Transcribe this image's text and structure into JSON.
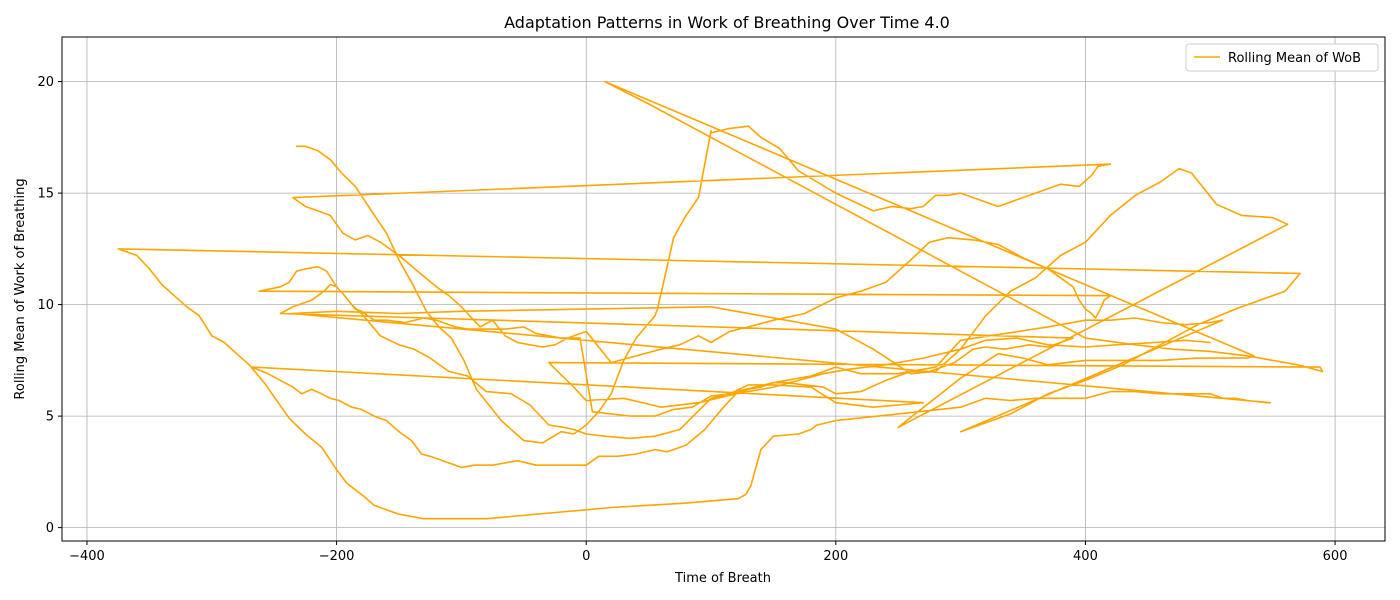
{
  "chart_data": {
    "type": "line",
    "title": "Adaptation Patterns in Work of Breathing Over Time 4.0",
    "xlabel": "Time of Breath",
    "ylabel": "Rolling Mean of Work of Breathing",
    "xlim": [
      -420,
      640
    ],
    "ylim": [
      -0.6,
      22
    ],
    "xticks": [
      -400,
      -200,
      0,
      200,
      400,
      600
    ],
    "yticks": [
      0,
      5,
      10,
      15,
      20
    ],
    "xtick_labels": [
      "−400",
      "−200",
      "0",
      "200",
      "400",
      "600"
    ],
    "ytick_labels": [
      "0",
      "5",
      "10",
      "15",
      "20"
    ],
    "grid": true,
    "legend": {
      "position": "top-right"
    },
    "series": [
      {
        "name": "Rolling Mean of WoB",
        "color": "#ffa500",
        "x": [
          -232,
          -225,
          -215,
          -205,
          -196,
          -185,
          -172,
          -160,
          -150,
          -140,
          -128,
          -118,
          -108,
          -98,
          -88,
          -78,
          -68,
          -50,
          -35,
          -20,
          -10,
          0,
          10,
          20,
          30,
          40,
          55,
          57,
          62,
          70,
          80,
          90,
          100,
          100,
          115,
          130,
          140,
          155,
          170,
          185,
          200,
          215,
          230,
          245,
          260,
          270,
          280,
          290,
          300,
          330,
          360,
          380,
          395,
          405,
          410,
          420,
          -235,
          -225,
          -215,
          -205,
          -195,
          -185,
          -175,
          -165,
          -150,
          -135,
          -120,
          -110,
          -100,
          -95,
          -85,
          -75,
          -65,
          -55,
          -45,
          -35,
          -25,
          -15,
          0,
          20,
          40,
          60,
          75,
          90,
          100,
          115,
          130,
          150,
          175,
          200,
          220,
          240,
          260,
          275,
          290,
          310,
          330,
          350,
          370,
          380,
          390,
          395,
          400,
          405,
          408,
          412,
          415,
          420,
          -262,
          -245,
          -238,
          -232,
          -225,
          -215,
          -208,
          -200,
          -195,
          -185,
          -180,
          -170,
          -160,
          -145,
          -130,
          -120,
          -105,
          -95,
          -80,
          -65,
          -50,
          -40,
          -30,
          -20,
          -5,
          5,
          20,
          35,
          55,
          70,
          85,
          100,
          115,
          130,
          150,
          180,
          200,
          230,
          250,
          270,
          -268,
          -255,
          -245,
          -235,
          -228,
          -220,
          -212,
          -205,
          -198,
          -188,
          -180,
          -170,
          -160,
          -150,
          -140,
          -132,
          -125,
          -115,
          -100,
          -90,
          -75,
          -55,
          -40,
          -25,
          -10,
          0,
          10,
          25,
          40,
          55,
          65,
          80,
          95,
          110,
          120,
          130,
          140,
          150,
          160,
          175,
          190,
          200,
          220,
          240,
          260,
          275,
          295,
          310,
          320,
          335,
          355,
          370,
          380,
          390,
          -245,
          -235,
          -220,
          -210,
          -205,
          -200,
          -195,
          -188,
          -180,
          -165,
          -150,
          -138,
          -125,
          -110,
          -95,
          -80,
          -60,
          -45,
          -30,
          -18,
          -10,
          0,
          15,
          35,
          55,
          75,
          100,
          120,
          150,
          180,
          200,
          220,
          250,
          280,
          300,
          370,
          380,
          400,
          420,
          440,
          460,
          480,
          500,
          510,
          300,
          340,
          370,
          400,
          430,
          460,
          490,
          520,
          560,
          572,
          -375,
          -360,
          -350,
          -340,
          -330,
          -320,
          -310,
          -300,
          -290,
          -280,
          -270,
          -258,
          -248,
          -238,
          -225,
          -212,
          -200,
          -192,
          -185,
          -178,
          -170,
          -160,
          -150,
          -140,
          -130,
          -120,
          -100,
          -80,
          -60,
          -40,
          -20,
          0,
          20,
          50,
          80,
          100,
          122,
          128,
          132,
          140,
          150,
          170,
          180,
          185,
          200,
          250,
          300,
          320,
          340,
          360,
          375,
          400,
          420,
          440,
          460,
          480,
          500,
          510,
          520,
          530,
          545,
          548,
          -236,
          -200,
          -150,
          -100,
          0,
          100,
          200,
          230,
          260,
          280,
          300,
          320,
          340,
          360,
          380,
          400,
          420,
          440,
          460,
          475,
          485,
          495,
          505,
          525,
          550,
          562,
          250,
          300,
          330,
          350,
          370,
          400,
          430,
          460,
          490,
          510,
          530,
          535,
          15,
          50,
          100,
          150,
          200,
          250,
          300,
          350,
          400,
          440,
          470,
          500,
          530,
          570,
          590,
          588,
          -30,
          -10,
          0,
          30,
          60,
          90,
          120,
          150,
          170,
          190,
          210,
          240,
          270,
          300,
          320,
          345,
          370,
          400,
          425,
          455,
          480,
          500
        ],
        "y": [
          17.1,
          17.1,
          16.9,
          16.5,
          15.9,
          15.3,
          14.2,
          13.2,
          12.0,
          11.0,
          9.7,
          9.0,
          8.5,
          7.5,
          6.2,
          5.5,
          4.8,
          3.9,
          3.8,
          4.3,
          4.2,
          4.6,
          5.2,
          6.0,
          7.5,
          8.5,
          9.5,
          9.8,
          11.0,
          13.0,
          14.0,
          14.8,
          17.8,
          17.7,
          17.9,
          18.0,
          17.5,
          17.0,
          16.0,
          15.5,
          15.0,
          14.6,
          14.2,
          14.4,
          14.3,
          14.4,
          14.9,
          14.9,
          15.0,
          14.4,
          15.0,
          15.4,
          15.3,
          15.8,
          16.2,
          16.3,
          14.8,
          14.4,
          14.2,
          14.0,
          13.2,
          12.9,
          13.1,
          12.8,
          12.2,
          11.5,
          10.8,
          10.4,
          9.9,
          9.6,
          9.0,
          9.3,
          8.6,
          8.3,
          8.2,
          8.1,
          8.2,
          8.5,
          8.8,
          7.4,
          7.7,
          8.0,
          8.2,
          8.6,
          8.3,
          8.8,
          9.0,
          9.3,
          9.6,
          10.3,
          10.6,
          11.0,
          12.0,
          12.8,
          13.0,
          12.9,
          12.7,
          12.1,
          11.6,
          11.2,
          10.8,
          10.2,
          9.8,
          9.6,
          9.4,
          9.8,
          10.2,
          10.4,
          10.6,
          10.8,
          11.0,
          11.5,
          11.6,
          11.7,
          11.5,
          10.8,
          10.5,
          9.8,
          9.7,
          9.3,
          9.3,
          9.2,
          9.4,
          9.3,
          9.0,
          8.9,
          8.9,
          8.9,
          9.0,
          8.7,
          8.6,
          8.5,
          8.5,
          5.2,
          5.1,
          5.0,
          5.0,
          5.3,
          5.4,
          5.9,
          6.0,
          6.4,
          6.4,
          6.3,
          5.6,
          5.4,
          5.5,
          5.6,
          7.2,
          6.9,
          6.6,
          6.3,
          6.0,
          6.2,
          6.0,
          5.8,
          5.7,
          5.4,
          5.3,
          5.0,
          4.8,
          4.3,
          3.9,
          3.3,
          3.2,
          3.0,
          2.7,
          2.8,
          2.8,
          3.0,
          2.8,
          2.8,
          2.8,
          2.8,
          3.2,
          3.2,
          3.3,
          3.5,
          3.4,
          3.7,
          4.4,
          5.4,
          6.0,
          6.2,
          6.3,
          6.5,
          6.5,
          6.4,
          6.3,
          6.0,
          6.1,
          6.6,
          7.0,
          7.0,
          7.4,
          8.0,
          8.1,
          8.0,
          8.2,
          8.1,
          8.3,
          8.5,
          9.6,
          9.9,
          10.2,
          10.6,
          10.9,
          10.8,
          10.5,
          10.0,
          9.6,
          8.6,
          8.2,
          8.0,
          7.6,
          7.0,
          6.8,
          6.1,
          6.0,
          5.5,
          4.6,
          4.5,
          4.4,
          4.2,
          4.1,
          4.0,
          4.1,
          4.4,
          5.8,
          6.1,
          6.5,
          6.8,
          7.2,
          6.9,
          6.9,
          7.2,
          8.4,
          9.0,
          9.1,
          9.3,
          9.3,
          9.4,
          9.2,
          9.1,
          9.2,
          9.3,
          4.3,
          5.1,
          6.0,
          6.6,
          7.3,
          8.2,
          9.1,
          9.8,
          10.6,
          11.4,
          12.5,
          12.2,
          11.6,
          10.9,
          10.4,
          9.9,
          9.5,
          8.6,
          8.3,
          7.8,
          7.3,
          6.5,
          5.7,
          4.9,
          4.2,
          3.6,
          2.6,
          2.0,
          1.7,
          1.4,
          1.0,
          0.8,
          0.6,
          0.5,
          0.4,
          0.4,
          0.4,
          0.4,
          0.5,
          0.6,
          0.7,
          0.8,
          0.9,
          1.0,
          1.1,
          1.2,
          1.3,
          1.5,
          1.9,
          3.5,
          4.1,
          4.2,
          4.4,
          4.6,
          4.8,
          5.1,
          5.4,
          5.8,
          5.7,
          5.8,
          5.8,
          5.8,
          6.1,
          6.1,
          6.0,
          6.0,
          6.0,
          5.8,
          5.8,
          5.7,
          5.6,
          5.6,
          9.6,
          9.7,
          9.6,
          9.7,
          9.8,
          9.9,
          8.9,
          8.0,
          6.9,
          7.0,
          8.0,
          9.5,
          10.6,
          11.2,
          12.2,
          12.8,
          14.0,
          14.9,
          15.5,
          16.1,
          15.9,
          15.2,
          14.5,
          14.0,
          13.9,
          13.6,
          4.5,
          6.7,
          7.8,
          7.6,
          7.3,
          7.5,
          7.5,
          7.5,
          7.6,
          7.6,
          7.6,
          7.7,
          20.0,
          19.0,
          17.5,
          16.0,
          14.5,
          13.0,
          11.5,
          10.0,
          8.5,
          8.2,
          8.0,
          7.9,
          7.7,
          7.3,
          7.0,
          7.2,
          7.4,
          6.3,
          5.7,
          5.8,
          5.4,
          5.6,
          6.0,
          6.3,
          6.6,
          6.9,
          7.1,
          7.3,
          7.6,
          8.0,
          8.4,
          8.5,
          8.2,
          8.1,
          8.2,
          8.3,
          8.4,
          8.3
        ]
      }
    ]
  }
}
